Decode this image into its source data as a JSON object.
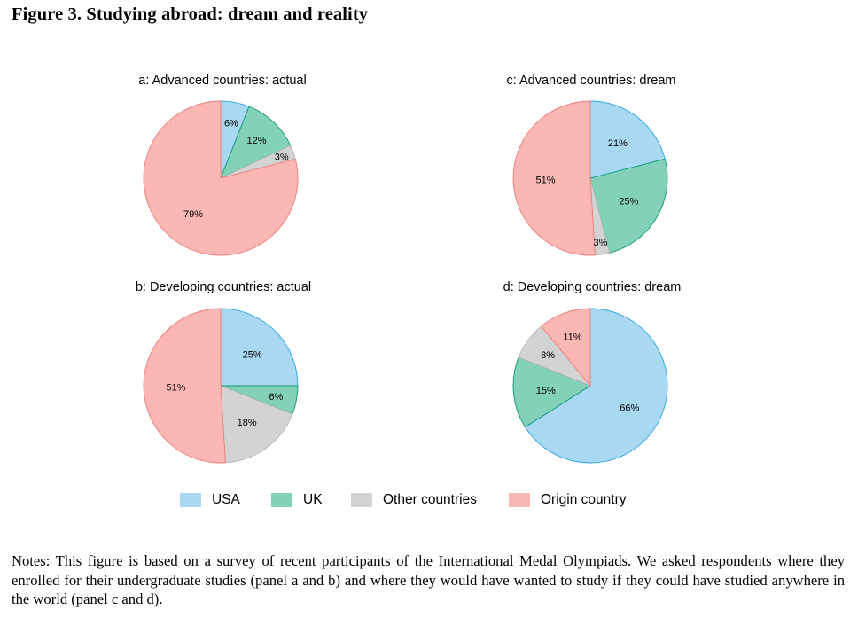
{
  "figure": {
    "title": "Figure 3. Studying abroad: dream and reality",
    "notes": "Notes: This figure is based on a survey of recent participants of the International Medal Olympiads. We asked respondents where they enrolled for their undergraduate studies (panel a and b) and where they would have wanted to study if they could have studied anywhere in the world (panel c and d)."
  },
  "colors": {
    "USA": "#a8d8f2",
    "UK": "#83d1b9",
    "Other countries": "#d3d3d3",
    "Origin country": "#fbb7b4"
  },
  "legend": {
    "items": [
      {
        "label": "USA",
        "color": "#a8d8f2"
      },
      {
        "label": "UK",
        "color": "#83d1b9"
      },
      {
        "label": "Other countries",
        "color": "#d3d3d3"
      },
      {
        "label": "Origin country",
        "color": "#fbb7b4"
      }
    ]
  },
  "chart_data": [
    {
      "type": "pie",
      "panel": "a",
      "title": "a: Advanced countries: actual",
      "start": "top",
      "direction": "clockwise",
      "slices": [
        {
          "label": "USA",
          "value": 6,
          "text": "6%"
        },
        {
          "label": "UK",
          "value": 12,
          "text": "12%"
        },
        {
          "label": "Other countries",
          "value": 3,
          "text": "3%"
        },
        {
          "label": "Origin country",
          "value": 79,
          "text": "79%"
        }
      ]
    },
    {
      "type": "pie",
      "panel": "b",
      "title": "b: Developing countries: actual",
      "start": "top",
      "direction": "clockwise",
      "slices": [
        {
          "label": "USA",
          "value": 25,
          "text": "25%"
        },
        {
          "label": "UK",
          "value": 6,
          "text": "6%"
        },
        {
          "label": "Other countries",
          "value": 18,
          "text": "18%"
        },
        {
          "label": "Origin country",
          "value": 51,
          "text": "51%"
        }
      ]
    },
    {
      "type": "pie",
      "panel": "c",
      "title": "c: Advanced countries: dream",
      "start": "top",
      "direction": "clockwise",
      "slices": [
        {
          "label": "USA",
          "value": 21,
          "text": "21%"
        },
        {
          "label": "UK",
          "value": 25,
          "text": "25%"
        },
        {
          "label": "Other countries",
          "value": 3,
          "text": "3%"
        },
        {
          "label": "Origin country",
          "value": 51,
          "text": "51%"
        }
      ]
    },
    {
      "type": "pie",
      "panel": "d",
      "title": "d: Developing countries: dream",
      "start": "top",
      "direction": "clockwise",
      "slices": [
        {
          "label": "USA",
          "value": 66,
          "text": "66%"
        },
        {
          "label": "UK",
          "value": 15,
          "text": "15%"
        },
        {
          "label": "Other countries",
          "value": 8,
          "text": "8%"
        },
        {
          "label": "Origin country",
          "value": 11,
          "text": "11%"
        }
      ]
    }
  ]
}
